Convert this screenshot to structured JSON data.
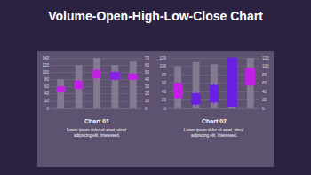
{
  "title": "Volume-Open-High-Low-Close Chart",
  "chart_data": [
    {
      "type": "candlestick",
      "title": "Chart 01",
      "subtitle": "Lorem ipsum dolor sit amet, simul adipiscing elit. Interessed.",
      "categories": [
        null,
        null,
        null,
        null,
        null
      ],
      "ylim": [
        0,
        140
      ],
      "yticks": [
        0,
        20,
        40,
        60,
        80,
        100,
        120,
        140
      ],
      "y2lim": [
        0,
        70
      ],
      "y2ticks": [
        0,
        10,
        20,
        30,
        40,
        50,
        60,
        70
      ],
      "grid": true,
      "tick_labels": "y",
      "series": [
        {
          "type": "bar",
          "axis": "y2",
          "color": "#8a8196",
          "values": [
            40,
            60,
            70,
            60,
            65
          ]
        },
        {
          "type": "candlestick",
          "colors": [
            "#c21fe6",
            "#c21fe6",
            "#c21fe6",
            "#8a1fe6",
            "#c21fe6"
          ],
          "values": [
            [
              45,
              60,
              30,
              75
            ],
            [
              55,
              75,
              50,
              80
            ],
            [
              85,
              105,
              80,
              110
            ],
            [
              100,
              80,
              75,
              105
            ],
            [
              80,
              95,
              75,
              100
            ]
          ]
        }
      ]
    },
    {
      "type": "candlestick",
      "title": "Chart 02",
      "subtitle": "Lorem ipsum dolor sit amet, simul adipiscing elit. Interessed.",
      "categories": [
        null,
        null,
        null,
        null,
        null
      ],
      "ylim": [
        0,
        120
      ],
      "yticks": [
        0,
        20,
        40,
        60,
        80,
        100,
        120
      ],
      "y2lim": [
        0,
        120
      ],
      "y2ticks": [
        0,
        20,
        40,
        60,
        80,
        100,
        120
      ],
      "grid": true,
      "tick_labels": "y",
      "series": [
        {
          "type": "bar",
          "axis": "y2",
          "color": "#8a8196",
          "values": [
            100,
            110,
            105,
            70,
            120
          ]
        },
        {
          "type": "candlestick",
          "colors": [
            "#c21fe6",
            "#6a1fe6",
            "#6a1fe6",
            "#6a1fe6",
            "#c21fe6"
          ],
          "values": [
            [
              25,
              60,
              20,
              65
            ],
            [
              35,
              10,
              5,
              40
            ],
            [
              55,
              15,
              10,
              60
            ],
            [
              120,
              5,
              3,
              122
            ],
            [
              55,
              95,
              50,
              100
            ]
          ]
        }
      ]
    }
  ]
}
